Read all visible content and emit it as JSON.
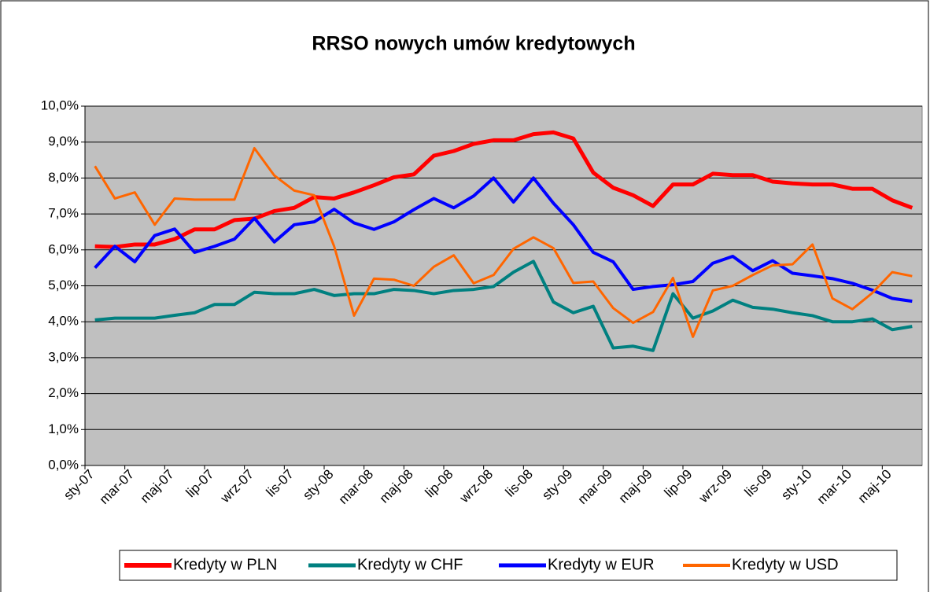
{
  "chart_data": {
    "type": "line",
    "title": "RRSO nowych umów kredytowych",
    "categories": [
      "sty-07",
      null,
      "mar-07",
      null,
      "maj-07",
      null,
      "lip-07",
      null,
      "wrz-07",
      null,
      "lis-07",
      null,
      "sty-08",
      null,
      "mar-08",
      null,
      "maj-08",
      null,
      "lip-08",
      null,
      "wrz-08",
      null,
      "lis-08",
      null,
      "sty-09",
      null,
      "mar-09",
      null,
      "maj-09",
      null,
      "lip-09",
      null,
      "wrz-09",
      null,
      "lis-09",
      null,
      "sty-10",
      null,
      "mar-10",
      null,
      "maj-10",
      null
    ],
    "series": [
      {
        "name": "Kredyty w PLN",
        "color": "#ff0000",
        "width": 5,
        "values": [
          6.1,
          6.08,
          6.15,
          6.15,
          6.3,
          6.57,
          6.57,
          6.83,
          6.87,
          7.08,
          7.17,
          7.47,
          7.43,
          7.6,
          7.8,
          8.02,
          8.1,
          8.62,
          8.75,
          8.95,
          9.05,
          9.05,
          9.22,
          9.27,
          9.1,
          8.15,
          7.73,
          7.52,
          7.22,
          7.82,
          7.82,
          8.12,
          8.08,
          8.08,
          7.9,
          7.85,
          7.82,
          7.82,
          7.7,
          7.7,
          7.38,
          7.17
        ]
      },
      {
        "name": "Kredyty w CHF",
        "color": "#008080",
        "width": 4,
        "values": [
          4.05,
          4.1,
          4.1,
          4.1,
          4.18,
          4.25,
          4.48,
          4.48,
          4.82,
          4.78,
          4.78,
          4.9,
          4.73,
          4.78,
          4.78,
          4.9,
          4.87,
          4.78,
          4.87,
          4.9,
          4.98,
          5.38,
          5.68,
          4.55,
          4.25,
          4.43,
          3.27,
          3.32,
          3.2,
          4.78,
          4.1,
          4.3,
          4.6,
          4.4,
          4.35,
          4.25,
          4.17,
          4.0,
          4.0,
          4.08,
          3.78,
          3.87
        ]
      },
      {
        "name": "Kredyty w EUR",
        "color": "#0000ff",
        "width": 4,
        "values": [
          5.5,
          6.1,
          5.67,
          6.4,
          6.58,
          5.93,
          6.1,
          6.3,
          6.88,
          6.22,
          6.7,
          6.78,
          7.13,
          6.75,
          6.57,
          6.78,
          7.12,
          7.43,
          7.17,
          7.5,
          8.0,
          7.33,
          8.0,
          7.3,
          6.7,
          5.93,
          5.67,
          4.9,
          4.98,
          5.03,
          5.12,
          5.63,
          5.82,
          5.42,
          5.7,
          5.35,
          5.28,
          5.2,
          5.07,
          4.88,
          4.65,
          4.57
        ]
      },
      {
        "name": "Kredyty w USD",
        "color": "#ff6600",
        "width": 3,
        "values": [
          8.33,
          7.43,
          7.6,
          6.7,
          7.43,
          7.4,
          7.4,
          7.4,
          8.83,
          8.07,
          7.65,
          7.52,
          6.1,
          4.17,
          5.2,
          5.17,
          5.0,
          5.53,
          5.85,
          5.07,
          5.3,
          6.03,
          6.35,
          6.05,
          5.08,
          5.12,
          4.38,
          3.97,
          4.27,
          5.22,
          3.58,
          4.87,
          5.0,
          5.3,
          5.57,
          5.6,
          6.15,
          4.65,
          4.35,
          4.8,
          5.38,
          5.27
        ]
      }
    ],
    "ylim": [
      0,
      10
    ],
    "yticks": [
      {
        "value": 0,
        "label": "0,0%"
      },
      {
        "value": 1,
        "label": "1,0%"
      },
      {
        "value": 2,
        "label": "2,0%"
      },
      {
        "value": 3,
        "label": "3,0%"
      },
      {
        "value": 4,
        "label": "4,0%"
      },
      {
        "value": 5,
        "label": "5,0%"
      },
      {
        "value": 6,
        "label": "6,0%"
      },
      {
        "value": 7,
        "label": "7,0%"
      },
      {
        "value": 8,
        "label": "8,0%"
      },
      {
        "value": 9,
        "label": "9,0%"
      },
      {
        "value": 10,
        "label": "10,0%"
      }
    ],
    "grid": true,
    "legend": "bottom"
  }
}
